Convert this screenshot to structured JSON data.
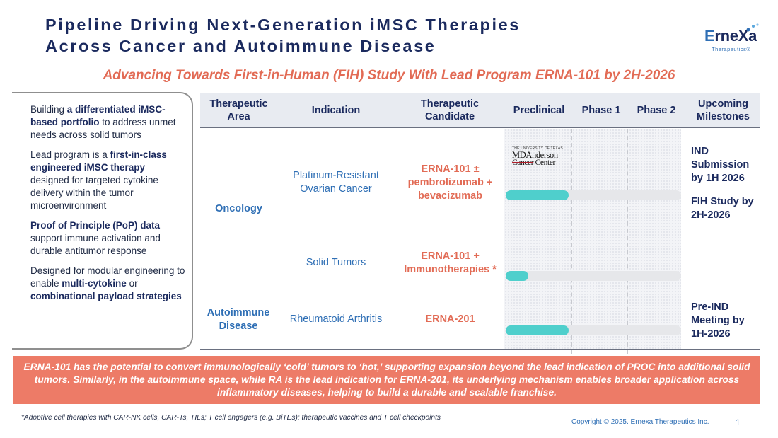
{
  "title": {
    "line1": "Pipeline Driving Next-Generation iMSC Therapies",
    "line2": "Across Cancer and Autoimmune Disease"
  },
  "logo": {
    "brand_e": "E",
    "brand_rest": "rneXa",
    "sub": "Therapeutics®"
  },
  "subtitle": "Advancing Towards First-in-Human (FIH) Study With Lead Program ERNA-101 by 2H-2026",
  "left_panel": [
    {
      "pre": "Building ",
      "bold": "a differentiated iMSC-based portfolio",
      "post": " to address unmet needs across solid tumors"
    },
    {
      "pre": "Lead program is a ",
      "bold": "first-in-class engineered iMSC therapy",
      "post": " designed for targeted cytokine delivery within the tumor microenvironment"
    },
    {
      "pre": "",
      "bold": "Proof of Principle (PoP) data",
      "post": " support immune activation and durable antitumor response"
    },
    {
      "pre": "Designed for modular engineering to enable ",
      "bold": "multi-cytokine",
      "mid": " or ",
      "bold2": "combinational payload strategies",
      "post": ""
    }
  ],
  "table": {
    "headers": {
      "area": "Therapeutic Area",
      "indication": "Indication",
      "candidate": "Therapeutic Candidate",
      "preclinical": "Preclinical",
      "phase1": "Phase 1",
      "phase2": "Phase 2",
      "milestones": "Upcoming Milestones"
    },
    "areas": {
      "oncology": "Oncology",
      "autoimmune": "Autoimmune Disease"
    },
    "rows": [
      {
        "indication": "Platinum-Resistant Ovarian Cancer",
        "candidate": "ERNA-101 ± pembrolizumab + bevacizumab",
        "progress": 0.36,
        "milestone1": "IND Submission by 1H 2026",
        "milestone2": "FIH Study by 2H-2026"
      },
      {
        "indication": "Solid Tumors",
        "candidate": "ERNA-101 + Immunotherapies *",
        "progress": 0.13,
        "milestone1": "",
        "milestone2": ""
      },
      {
        "indication": "Rheumatoid Arthritis",
        "candidate": "ERNA-201",
        "progress": 0.36,
        "milestone1": "Pre-IND Meeting by 1H-2026",
        "milestone2": ""
      }
    ],
    "partner_logo": {
      "top": "THE UNIVERSITY OF TEXAS",
      "main": "MDAnderson",
      "cancer": "Cancer",
      "center": " Center"
    }
  },
  "banner": "ERNA-101 has the potential to convert immunologically ‘cold’ tumors to ‘hot,’ supporting expansion beyond the lead indication of PROC into additional solid tumors. Similarly, in the autoimmune space, while RA is the lead indication for ERNA-201, its underlying mechanism enables broader application across inflammatory diseases, helping to build a durable and scalable franchise.",
  "footnote": "*Adoptive cell therapies with CAR-NK cells, CAR-Ts, TILs; T cell engagers (e.g. BiTEs); therapeutic vaccines and T cell checkpoints",
  "copyright": "Copyright © 2025. Ernexa Therapeutics Inc.",
  "page_number": "1"
}
